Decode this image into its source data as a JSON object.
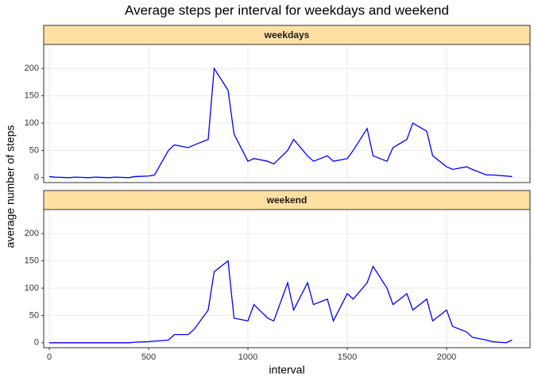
{
  "chart_data": {
    "type": "line",
    "title": "Average steps per interval for weekdays and weekend",
    "x_label": "interval",
    "y_label": "average number of steps",
    "color": "#0000ff",
    "strip_color": "#ffe0a3",
    "grid": true,
    "xlim": [
      -28,
      2420
    ],
    "xticks": [
      0,
      500,
      1000,
      1500,
      2000
    ],
    "ylim": [
      -9,
      244
    ],
    "yticks": [
      0,
      50,
      100,
      150,
      200
    ],
    "facets": [
      {
        "title": "weekdays",
        "x": [
          0,
          30,
          100,
          130,
          200,
          230,
          300,
          330,
          400,
          430,
          500,
          530,
          600,
          630,
          700,
          730,
          800,
          830,
          900,
          930,
          1000,
          1030,
          1100,
          1130,
          1200,
          1230,
          1300,
          1330,
          1400,
          1430,
          1500,
          1530,
          1600,
          1630,
          1700,
          1730,
          1800,
          1830,
          1900,
          1930,
          2000,
          2030,
          2100,
          2130,
          2200,
          2230,
          2300,
          2330
        ],
        "values": [
          2,
          1,
          0,
          1,
          0,
          1,
          0,
          1,
          0,
          2,
          3,
          5,
          50,
          60,
          55,
          60,
          70,
          200,
          160,
          80,
          30,
          35,
          30,
          25,
          50,
          70,
          40,
          30,
          40,
          30,
          35,
          50,
          90,
          40,
          30,
          55,
          70,
          100,
          85,
          40,
          20,
          15,
          20,
          15,
          5,
          5,
          3,
          2
        ]
      },
      {
        "title": "weekend",
        "x": [
          0,
          30,
          100,
          130,
          200,
          230,
          300,
          330,
          400,
          430,
          500,
          530,
          600,
          630,
          700,
          730,
          800,
          830,
          900,
          930,
          1000,
          1030,
          1100,
          1130,
          1200,
          1230,
          1300,
          1330,
          1400,
          1430,
          1500,
          1530,
          1600,
          1630,
          1700,
          1730,
          1800,
          1830,
          1900,
          1930,
          2000,
          2030,
          2100,
          2130,
          2200,
          2230,
          2300,
          2330
        ],
        "values": [
          0,
          0,
          0,
          0,
          0,
          0,
          0,
          0,
          0,
          1,
          2,
          3,
          5,
          15,
          15,
          25,
          60,
          130,
          150,
          45,
          40,
          70,
          45,
          40,
          110,
          60,
          110,
          70,
          80,
          40,
          90,
          80,
          110,
          140,
          100,
          70,
          90,
          60,
          80,
          40,
          60,
          30,
          20,
          10,
          5,
          2,
          0,
          5
        ]
      }
    ]
  }
}
